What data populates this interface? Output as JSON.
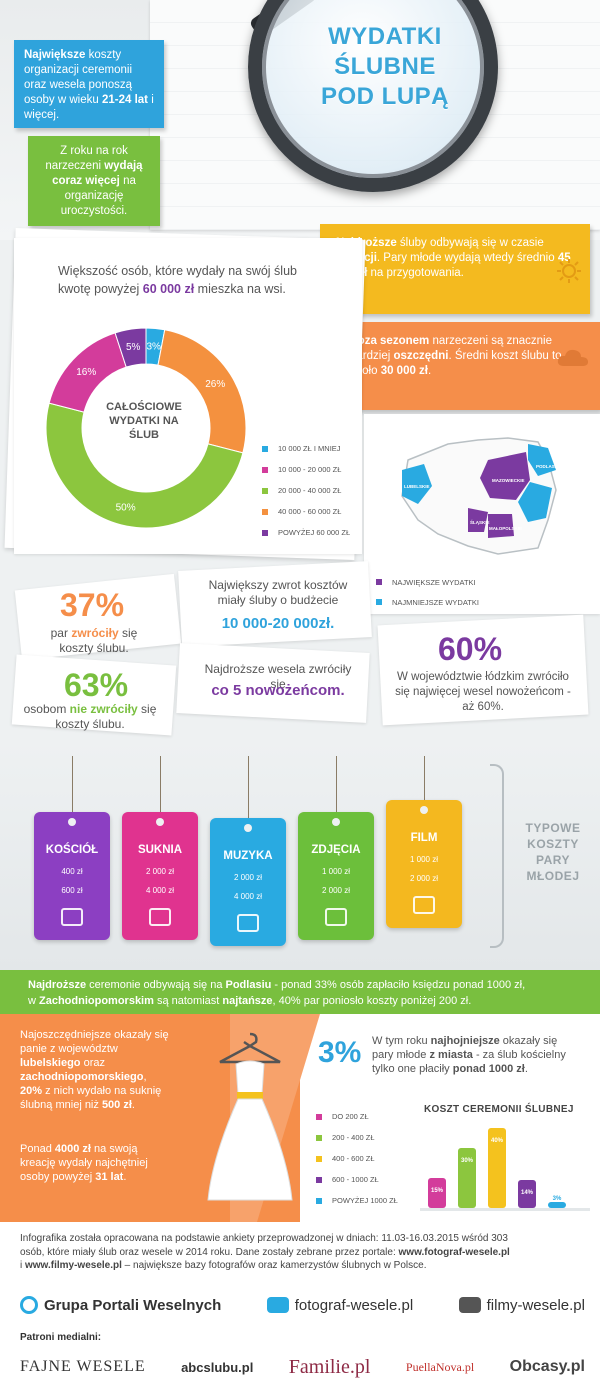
{
  "header": {
    "title_lines": [
      "WYDATKI",
      "ŚLUBNE",
      "POD LUPĄ"
    ]
  },
  "box_age": {
    "bold1": "Największe",
    "text1": " koszty organizacji ceremonii oraz wesela ponoszą osoby w wieku ",
    "bold2": "21-24 lat",
    "text2": " i więcej."
  },
  "box_growth": {
    "text1": "Z roku na rok narzeczeni ",
    "bold1": "wydają coraz więcej",
    "text2": " na organizację uroczystości."
  },
  "box_summer": {
    "bold1": "Najdroższe",
    "text1": " śluby odbywają się w czasie ",
    "bold2": "wakacji",
    "text2": ". Pary młode wydają wtedy średnio ",
    "bold3": "45 000 zł",
    "text3": " na przygotowania."
  },
  "box_offseason": {
    "bold1": "Poza sezonem",
    "text1": " narzeczeni są znacznie bardziej ",
    "bold2": "oszczędni",
    "text2": ". Średni koszt ślubu to około ",
    "bold3": "30 000 zł",
    "text3": "."
  },
  "village": {
    "text1": "Większość osób, które wydały na swój ślub kwotę powyżej ",
    "amount": "60 000 zł",
    "text2": " mieszka na wsi."
  },
  "chart_data": [
    {
      "type": "pie",
      "title": "CAŁOŚCIOWE WYDATKI NA ŚLUB",
      "categories": [
        "10 000 ZŁ I MNIEJ",
        "10 000 - 20 000 ZŁ",
        "20 000 - 40 000 ZŁ",
        "40 000 - 60 000 ZŁ",
        "POWYŻEJ 60 000 ZŁ"
      ],
      "values": [
        3,
        16,
        50,
        26,
        5
      ],
      "labels": [
        "3%",
        "16%",
        "50%",
        "26%",
        "5%"
      ],
      "colors": [
        "#29aae1",
        "#d33c9b",
        "#8cc63e",
        "#f4913f",
        "#7b3aa0"
      ]
    },
    {
      "type": "bar",
      "title": "KOSZT CEREMONII ŚLUBNEJ",
      "categories": [
        "DO 200 ZŁ",
        "200 - 400 ZŁ",
        "400 - 600 ZŁ",
        "600 - 1000 ZŁ",
        "POWYŻEJ 1000 ZŁ"
      ],
      "values": [
        15,
        30,
        40,
        14,
        3
      ],
      "labels": [
        "15%",
        "30%",
        "40%",
        "14%",
        "3%"
      ],
      "colors": [
        "#d33c9b",
        "#8cc63e",
        "#f4c21e",
        "#7b3aa0",
        "#29aae1"
      ]
    }
  ],
  "map": {
    "regions": {
      "podlasie": "PODLASIE",
      "mazowieckie": "MAZOWIECKIE",
      "lubelskie": "LUBELSKIE",
      "slaskie": "ŚLĄSKIE",
      "malopolskie": "MAŁOPOLSKIE"
    },
    "legend": [
      {
        "label": "NAJWIĘKSZE WYDATKI",
        "color": "#7b3aa0"
      },
      {
        "label": "NAJMNIEJSZE WYDATKI",
        "color": "#29aae1"
      }
    ]
  },
  "stats": {
    "p37": {
      "num": "37%",
      "pre": "par ",
      "em": "zwróciły",
      "post": " się koszty ślubu."
    },
    "p63": {
      "num": "63%",
      "pre": "osobom ",
      "em": "nie zwróciły",
      "post": " się koszty ślubu."
    },
    "p10k": {
      "text": "Największy zwrot kosztów miały śluby o budżecie",
      "num": "10 000-20 000zł."
    },
    "p5": {
      "text": "Najdroższe wesela zwróciły się",
      "num": "co 5 nowożeńcom."
    },
    "p60": {
      "num": "60%",
      "text": "W województwie łódzkim zwróciło się najwięcej wesel nowożeńcom - aż 60%."
    }
  },
  "tags": [
    {
      "title": "KOŚCIÓŁ",
      "line1": "400 zł",
      "line2": "600 zł",
      "color": "#8c3fc2",
      "icon": "church-icon"
    },
    {
      "title": "SUKNIA",
      "line1": "2 000 zł",
      "line2": "4 000 zł",
      "color": "#e0338f",
      "icon": "dress-icon"
    },
    {
      "title": "MUZYKA",
      "line1": "2 000 zł",
      "line2": "4 000 zł",
      "color": "#29aae1",
      "icon": "music-icon"
    },
    {
      "title": "ZDJĘCIA",
      "line1": "1 000 zł",
      "line2": "2 000 zł",
      "color": "#6cbf3b",
      "icon": "camera-icon"
    },
    {
      "title": "FILM",
      "line1": "1 000 zł",
      "line2": "2 000 zł",
      "color": "#f4b81f",
      "icon": "film-icon"
    }
  ],
  "typical_label": [
    "TYPOWE",
    "KOSZTY",
    "PARY",
    "MŁODEJ"
  ],
  "ceremony": {
    "b1": "Najdroższe",
    "t1": " ceremonie odbywają się na ",
    "b2": "Podlasiu",
    "t2": " - ponad 33% osób zapłaciło księdzu ponad 1000 zł,",
    "t3": "w ",
    "b3": "Zachodniopomorskim",
    "t4": " są natomiast ",
    "b4": "najtańsze",
    "t5": ", 40% par poniosło koszty poniżej 200 zł."
  },
  "dress": {
    "t1": "Najoszczędniejsze okazały się panie z województw ",
    "b1": "lubelskiego",
    "t2": " oraz ",
    "b2": "zachodniopomorskiego",
    "t3": ", ",
    "b3": "20%",
    "t4": " z nich wydało na suknię ślubną mniej niż ",
    "b4": "500 zł",
    "t5": ".",
    "t6": "Ponad ",
    "b6": "4000 zł",
    "t7": " na swoją kreację wydały najchętniej osoby powyżej ",
    "b7": "31 lat",
    "t8": "."
  },
  "p3": {
    "num": "3%",
    "t1": "W tym roku ",
    "b1": "najhojniejsze",
    "t2": " okazały się pary młode ",
    "b2": "z miasta",
    "t3": " - za ślub kościelny tylko one płaciły ",
    "b3": "ponad 1000 zł",
    "t4": "."
  },
  "footer": {
    "line1": "Infografika została opracowana na podstawie ankiety przeprowadzonej w dniach: 11.03-16.03.2015 wśród 303",
    "line2a": "osób, które miały ślub oraz wesele w 2014 roku. Dane zostały zebrane przez portale: ",
    "link1": "www.fotograf-wesele.pl",
    "line3a": "i ",
    "link2": "www.filmy-wesele.pl",
    "line3b": " – największe bazy fotografów oraz kamerzystów ślubnych w Polsce.",
    "brands": [
      "Grupa Portali Weselnych",
      "fotograf-wesele.pl",
      "filmy-wesele.pl"
    ],
    "patrons_label": "Patroni medialni:",
    "patrons": [
      "FAJNE WESELE",
      "abcslubu.pl",
      "Familie.pl",
      "PuellaNova.pl",
      "Obcasy.pl"
    ]
  }
}
